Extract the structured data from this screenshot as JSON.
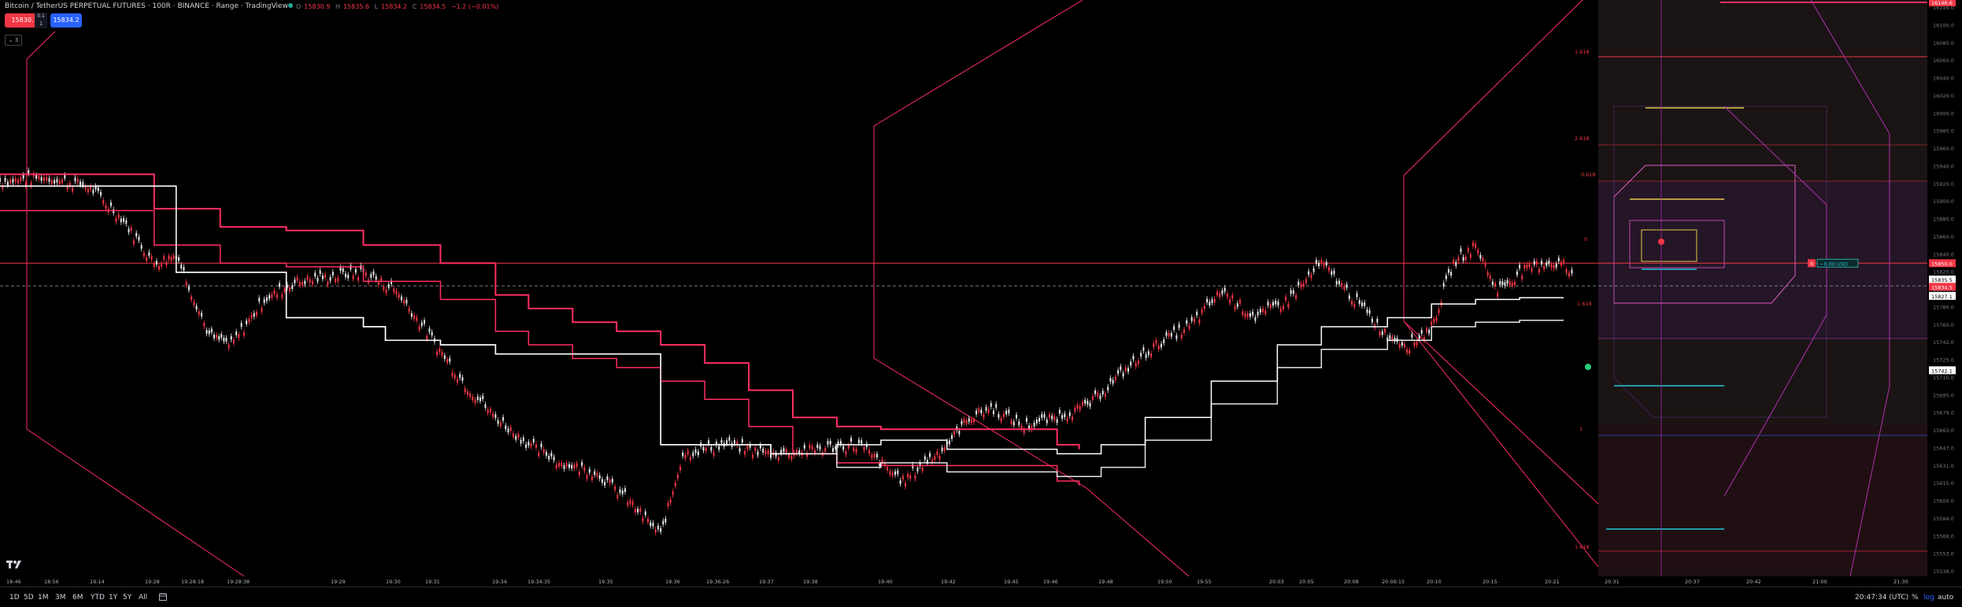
{
  "header": {
    "title": "Bitcoin / TetherUS PERPETUAL FUTURES · 100R · BINANCE · Range · TradingView",
    "ohlc": [
      {
        "k": "O",
        "v": "15830.9"
      },
      {
        "k": "H",
        "v": "15835.6"
      },
      {
        "k": "L",
        "v": "15834.2"
      },
      {
        "k": "C",
        "v": "15834.5"
      },
      {
        "k": "",
        "v": "−1.2 (−0.01%)"
      }
    ],
    "sell_price": "15830.1",
    "buy_price": "15834.2",
    "spread_top": "0.1",
    "spread_bottom": "1",
    "indicator_toggle": "3"
  },
  "chart_data": {
    "type": "line",
    "title": "",
    "xlabel": "",
    "ylabel": "",
    "ylim": [
      15515,
      16150
    ],
    "x_ticks": [
      "18:46",
      "18:56",
      "19:14",
      "19:28",
      "19:28:18",
      "19:28:38",
      "19:29",
      "19:30",
      "19:31",
      "19:34",
      "19:34:35",
      "19:35",
      "19:36",
      "19:36:26",
      "19:37",
      "19:38",
      "19:40",
      "19:42",
      "19:45",
      "19:46",
      "19:48",
      "19:50",
      "19:55",
      "20:03",
      "20:05",
      "20:08",
      "20:09:15",
      "20:10",
      "20:15",
      "20:21",
      "20:31",
      "20:37",
      "20:42",
      "21:00",
      "21:30"
    ],
    "y_ticks": [
      "16116.0",
      "16100.0",
      "16080.0",
      "16060.0",
      "16040.0",
      "16020.0",
      "16000.0",
      "15980.0",
      "15960.0",
      "15940.0",
      "15920.0",
      "15900.0",
      "15880.0",
      "15860.0",
      "15840.0",
      "15820.0",
      "15800.0",
      "15780.0",
      "15760.0",
      "15742.0",
      "15725.0",
      "15710.0",
      "15695.0",
      "15679.0",
      "15663.0",
      "15647.0",
      "15631.0",
      "15615.0",
      "15600.0",
      "15584.0",
      "15568.0",
      "15553.0",
      "15538.0"
    ],
    "fib_labels": [
      "1.618",
      "2.618",
      "0.618",
      "0",
      "1",
      "1.618",
      "1.618"
    ],
    "price_labels": {
      "top": "16146.6",
      "last": "15834.5",
      "ask": "15850.0",
      "mid": "15835.5",
      "bid": "15827.1",
      "low": "15742.1"
    },
    "position_label": "−0.00 USD",
    "position_qty": "0",
    "series": [
      {
        "name": "",
        "color": "#e8e8e8",
        "x": [
          0,
          40,
          80,
          110,
          140,
          160,
          190,
          210,
          240,
          270,
          300,
          330,
          360,
          390,
          420,
          450,
          480,
          510,
          540,
          570,
          600,
          620,
          660,
          700,
          740,
          780,
          820,
          840,
          860,
          880,
          900,
          930,
          960,
          990,
          1020,
          1050,
          1080,
          1110,
          1140,
          1170,
          1200,
          1230,
          1260,
          1280,
          1300,
          1320,
          1340,
          1360,
          1380,
          1400,
          1420,
          1430
        ],
        "y": [
          15950,
          15955,
          15945,
          15910,
          15860,
          15870,
          15780,
          15770,
          15820,
          15840,
          15845,
          15850,
          15830,
          15780,
          15730,
          15690,
          15660,
          15640,
          15630,
          15600,
          15560,
          15650,
          15660,
          15650,
          15655,
          15660,
          15620,
          15640,
          15660,
          15690,
          15700,
          15680,
          15690,
          15705,
          15740,
          15770,
          15790,
          15830,
          15800,
          15820,
          15860,
          15820,
          15780,
          15770,
          15790,
          15860,
          15880,
          15830,
          15850,
          15860,
          15860,
          15840
        ]
      },
      {
        "name": "",
        "color": "#ff2e63",
        "x": [
          0,
          100,
          140,
          200,
          260,
          330,
          400,
          450,
          480,
          520,
          560,
          600,
          640,
          680,
          720,
          760,
          800,
          840,
          880,
          920,
          960,
          980
        ],
        "y": [
          15958,
          15958,
          15920,
          15900,
          15896,
          15880,
          15860,
          15825,
          15810,
          15795,
          15785,
          15770,
          15750,
          15720,
          15690,
          15680,
          15677,
          15677,
          15677,
          15677,
          15660,
          15655
        ]
      },
      {
        "name": "",
        "color": "#ffffff",
        "x": [
          0,
          100,
          160,
          260,
          330,
          350,
          400,
          450,
          500,
          600,
          700,
          760,
          800,
          860,
          900,
          960,
          1000,
          1040,
          1100,
          1160,
          1200,
          1260,
          1300,
          1340,
          1380,
          1420
        ],
        "y": [
          15945,
          15945,
          15850,
          15800,
          15790,
          15775,
          15770,
          15760,
          15760,
          15660,
          15650,
          15660,
          15665,
          15655,
          15655,
          15650,
          15660,
          15690,
          15730,
          15770,
          15790,
          15800,
          15815,
          15820,
          15822,
          15822
        ]
      }
    ]
  },
  "timeframes": [
    "1D",
    "5D",
    "1M",
    "3M",
    "6M",
    "YTD",
    "1Y",
    "5Y",
    "All"
  ],
  "footer": {
    "clock": "20:47:34 (UTC)",
    "percent": "%",
    "log": "log",
    "auto": "auto"
  },
  "colors": {
    "bg": "#000000",
    "bull": "#e8e8e8",
    "bear": "#f23645",
    "line_pink": "#ff2e63",
    "magenta": "#b030b0",
    "cyan": "#26c6da",
    "yellow": "#e6c84a"
  }
}
